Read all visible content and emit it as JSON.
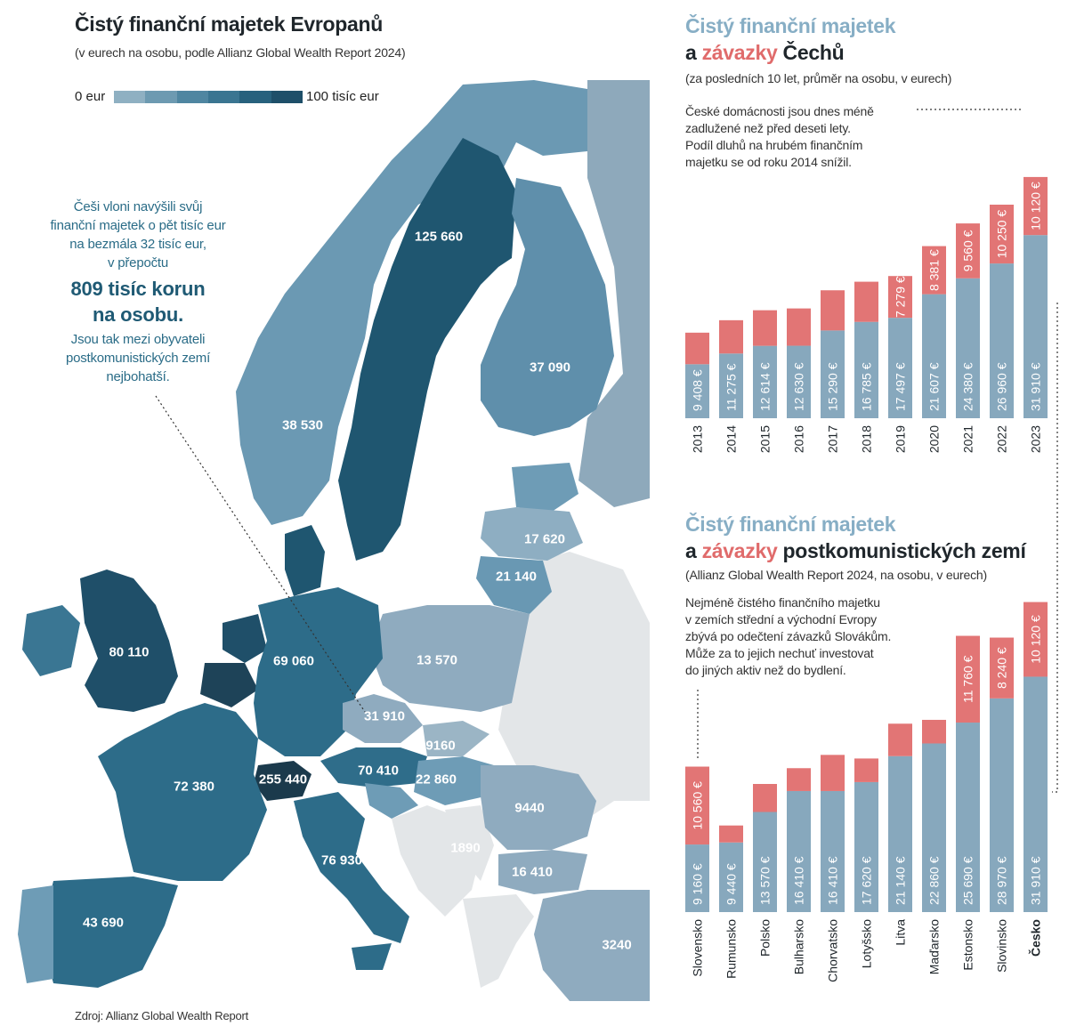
{
  "map": {
    "title": "Čistý finanční majetek Evropanů",
    "subtitle": "(v eurech na osobu, podle Allianz Global Wealth Report 2024)",
    "legend_min": "0 eur",
    "legend_max": "100 tisíc eur",
    "legend_colors": [
      "#8fb0c2",
      "#6d9ab1",
      "#4f86a1",
      "#3a7591",
      "#27617d",
      "#1e4f69"
    ],
    "annotation": {
      "line1": "Češi vloni navýšili svůj",
      "line2": "finanční majetek o pět tisíc eur",
      "line3": "na bezmála 32 tisíc eur,",
      "line4": "v přepočtu",
      "highlight1": "809 tisíc korun",
      "highlight2": "na osobu.",
      "line5": "Jsou tak mezi obyvateli",
      "line6": "postkomunistických zemí",
      "line7": "nejbohatší."
    },
    "source": "Zdroj: Allianz Global Wealth Report",
    "values": {
      "sweden": "125 660",
      "finland": "37 090",
      "norway": "38 530",
      "latvia": "17 620",
      "lithuania": "21 140",
      "uk": "80 110",
      "poland": "13 570",
      "germany": "69 060",
      "czechia": "31 910",
      "slovakia": "9160",
      "austria": "70 410",
      "switzerland": "255 440",
      "hungary": "22 860",
      "france": "72 380",
      "romania": "9440",
      "serbia": "1890",
      "bulgaria": "16 410",
      "italy": "76 930",
      "spain": "43 690",
      "turkey": "3240"
    }
  },
  "chart_data": [
    {
      "type": "bar",
      "stacked": true,
      "title_part1": "Čistý finanční majetek",
      "title_part2a": "a ",
      "title_part2b": "závazky",
      "title_part2c": " Čechů",
      "subtitle": "(za posledních 10 let, průměr na osobu, v eurech)",
      "note": [
        "České domácnosti jsou dnes méně",
        "zadlužené než před deseti lety.",
        "Podíl dluhů na hrubém finančním",
        "majetku se od roku 2014 snížil."
      ],
      "categories": [
        "2013",
        "2014",
        "2015",
        "2016",
        "2017",
        "2018",
        "2019",
        "2020",
        "2021",
        "2022",
        "2023"
      ],
      "series": [
        {
          "name": "Čistý finanční majetek",
          "color": "#87a8bd",
          "values": [
            9408,
            11275,
            12614,
            12630,
            15290,
            16785,
            17497,
            21607,
            24380,
            26960,
            31910
          ],
          "labels": [
            "9 408 €",
            "11 275 €",
            "12 614 €",
            "12 630 €",
            "15 290 €",
            "16 785 €",
            "17 497 €",
            "21 607 €",
            "24 380 €",
            "26 960 €",
            "31 910 €"
          ]
        },
        {
          "name": "Závazky",
          "color": "#e27575",
          "values": [
            5500,
            5800,
            6200,
            6500,
            7000,
            7000,
            7279,
            8381,
            9560,
            10250,
            10120
          ],
          "labels": [
            "",
            "",
            "",
            "",
            "",
            "",
            "7 279 €",
            "8 381 €",
            "9 560 €",
            "10 250 €",
            "10 120 €"
          ]
        }
      ]
    },
    {
      "type": "bar",
      "stacked": true,
      "title_part1": "Čistý finanční majetek",
      "title_part2a": "a ",
      "title_part2b": "závazky",
      "title_part2c": " postkomunistických zemí",
      "subtitle": "(Allianz Global Wealth Report 2024, na osobu, v eurech)",
      "note": [
        "Nejméně čistého finančního majetku",
        "v zemích střední a východní Evropy",
        "zbývá po odečtení závazků Slovákům.",
        "Může za to jejich nechuť investovat",
        "do jiných aktiv než do bydlení."
      ],
      "categories": [
        "Slovensko",
        "Rumunsko",
        "Polsko",
        "Bulharsko",
        "Chorvatsko",
        "Lotyšsko",
        "Litva",
        "Maďarsko",
        "Estonsko",
        "Slovinsko",
        "Česko"
      ],
      "series": [
        {
          "name": "Čistý finanční majetek",
          "color": "#87a8bd",
          "values": [
            9160,
            9440,
            13570,
            16410,
            16410,
            17620,
            21140,
            22860,
            25690,
            28970,
            31910
          ],
          "labels": [
            "9 160 €",
            "9 440 €",
            "13 570 €",
            "16 410 €",
            "16 410 €",
            "17 620 €",
            "21 140 €",
            "22 860 €",
            "25 690 €",
            "28 970 €",
            "31 910 €"
          ]
        },
        {
          "name": "Závazky",
          "color": "#e27575",
          "values": [
            10560,
            2300,
            3800,
            3100,
            4900,
            3200,
            4400,
            3200,
            11760,
            8240,
            10120
          ],
          "labels": [
            "10 560 €",
            "",
            "",
            "",
            "",
            "",
            "",
            "",
            "11 760 €",
            "8 240 €",
            "10 120 €"
          ]
        }
      ]
    }
  ]
}
